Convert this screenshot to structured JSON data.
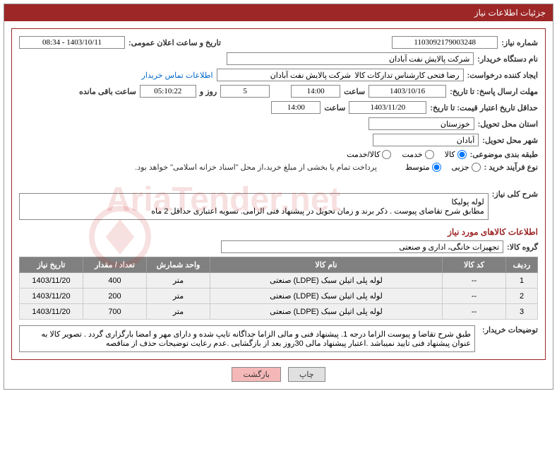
{
  "header": {
    "title": "جزئیات اطلاعات نیاز"
  },
  "fields": {
    "need_number_label": "شماره نیاز:",
    "need_number": "1103092179003248",
    "announce_date_label": "تاریخ و ساعت اعلان عمومی:",
    "announce_date": "1403/10/11 - 08:34",
    "buyer_org_label": "نام دستگاه خریدار:",
    "buyer_org": "شرکت پالایش نفت آبادان",
    "requester_label": "ایجاد کننده درخواست:",
    "requester": "رضا فتحی کارشناس تدارکات کالا  شرکت پالایش نفت آبادان",
    "contact_link": "اطلاعات تماس خریدار",
    "deadline_label": "مهلت ارسال پاسخ:  تا تاریخ:",
    "deadline_date": "1403/10/16",
    "time_label": "ساعت",
    "deadline_time": "14:00",
    "days_and": "روز و",
    "days_remaining": "5",
    "time_remaining": "05:10:22",
    "remaining_label": "ساعت باقی مانده",
    "validity_label": "حداقل تاریخ اعتبار قیمت: تا تاریخ:",
    "validity_date": "1403/11/20",
    "validity_time": "14:00",
    "province_label": "استان محل تحویل:",
    "province": "خوزستان",
    "city_label": "شهر محل تحویل:",
    "city": "آبادان",
    "category_label": "طبقه بندی موضوعی:",
    "cat_goods": "کالا",
    "cat_service": "خدمت",
    "cat_both": "کالا/خدمت",
    "purchase_type_label": "نوع فرآیند خرید :",
    "type_partial": "جزیی",
    "type_medium": "متوسط",
    "payment_note": "پرداخت تمام یا بخشی از مبلغ خرید،از محل \"اسناد خزانه اسلامی\" خواهد بود.",
    "desc_label": "شرح کلی نیاز:",
    "desc_line1": "لوله پولیکا",
    "desc_line2": "مطابق شرح تقاضای پیوست . ذکر برند و زمان تحویل در پیشنهاد فنی الزامی.  تسویه اعتباری حداقل 2 ماه",
    "goods_section": "اطلاعات کالاهای مورد نیاز",
    "group_label": "گروه کالا:",
    "group_value": "تجهیزات خانگی، اداری و صنعتی",
    "buyer_notes_label": "توضیحات خریدار:",
    "buyer_notes": "طبق شرح تقاضا و پیوست الزاما درجه 1. پیشنهاد فنی و مالی الزاما جداگانه تایپ شده و دارای مهر و امضا بارگزاری گردد . تصویر کالا به عنوان پیشنهاد فنی تایید نمیباشد .اعتبار پیشنهاد مالی 30روز بعد از بازگشایی .عدم رعایت توضیحات حذف از مناقصه"
  },
  "table": {
    "headers": {
      "row": "ردیف",
      "code": "کد کالا",
      "name": "نام کالا",
      "unit": "واحد شمارش",
      "qty": "تعداد / مقدار",
      "date": "تاریخ نیاز"
    },
    "rows": [
      {
        "num": "1",
        "code": "--",
        "name": "لوله پلی اتیلن سبک (LDPE) صنعتی",
        "unit": "متر",
        "qty": "400",
        "date": "1403/11/20"
      },
      {
        "num": "2",
        "code": "--",
        "name": "لوله پلی اتیلن سبک (LDPE) صنعتی",
        "unit": "متر",
        "qty": "200",
        "date": "1403/11/20"
      },
      {
        "num": "3",
        "code": "--",
        "name": "لوله پلی اتیلن سبک (LDPE) صنعتی",
        "unit": "متر",
        "qty": "700",
        "date": "1403/11/20"
      }
    ]
  },
  "buttons": {
    "print": "چاپ",
    "back": "بازگشت"
  },
  "watermark": "AriaTender.net"
}
